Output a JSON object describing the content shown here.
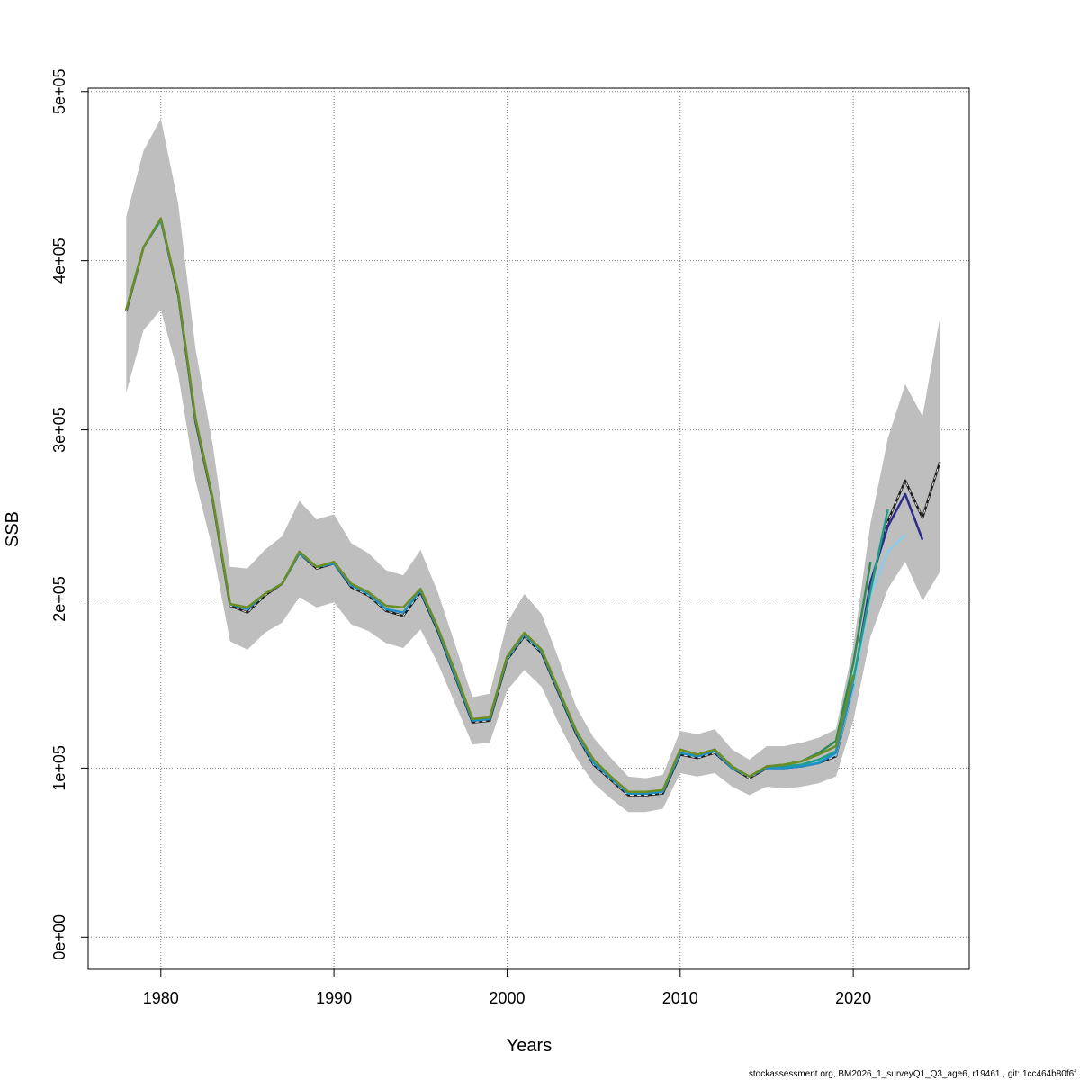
{
  "chart_data": {
    "type": "line",
    "xlabel": "Years",
    "ylabel": "SSB",
    "xlim": [
      1975.8,
      2026.7
    ],
    "ylim": [
      -19000,
      502000
    ],
    "x_ticks": [
      1980,
      1990,
      2000,
      2010,
      2020
    ],
    "x_tick_labels": [
      "1980",
      "1990",
      "2000",
      "2010",
      "2020"
    ],
    "y_ticks": [
      0,
      100000,
      200000,
      300000,
      400000,
      500000
    ],
    "y_tick_labels": [
      "0e+00",
      "1e+05",
      "2e+05",
      "3e+05",
      "4e+05",
      "5e+05"
    ],
    "grid": true,
    "confidence_band": {
      "color": "#bebebe",
      "x": [
        1978,
        1979,
        1980,
        1981,
        1982,
        1983,
        1984,
        1985,
        1986,
        1987,
        1988,
        1989,
        1990,
        1991,
        1992,
        1993,
        1994,
        1995,
        1996,
        1997,
        1998,
        1999,
        2000,
        2001,
        2002,
        2003,
        2004,
        2005,
        2006,
        2007,
        2008,
        2009,
        2010,
        2011,
        2012,
        2013,
        2014,
        2015,
        2016,
        2017,
        2018,
        2019,
        2020,
        2021,
        2022,
        2023,
        2024,
        2025
      ],
      "upper": [
        426000,
        465000,
        484000,
        434000,
        348000,
        291000,
        219000,
        218000,
        229000,
        237000,
        258000,
        247000,
        250000,
        233000,
        227000,
        217000,
        214000,
        229000,
        204000,
        173000,
        142000,
        144000,
        186000,
        203000,
        191000,
        164000,
        136000,
        118000,
        106000,
        95000,
        94000,
        96000,
        122000,
        120000,
        123000,
        111000,
        105000,
        113000,
        113000,
        115000,
        118000,
        123000,
        172000,
        245000,
        295000,
        327000,
        308000,
        366000
      ],
      "lower": [
        322000,
        359000,
        371000,
        333000,
        270000,
        229000,
        175000,
        170000,
        180000,
        186000,
        201000,
        195000,
        198000,
        185000,
        181000,
        174000,
        171000,
        182000,
        162000,
        138000,
        114000,
        115000,
        146000,
        158000,
        148000,
        126000,
        106000,
        91000,
        82000,
        74000,
        74000,
        76000,
        97000,
        95000,
        97000,
        89000,
        84000,
        89000,
        88000,
        89000,
        91000,
        95000,
        128000,
        178000,
        206000,
        222000,
        199000,
        216000
      ]
    },
    "series": [
      {
        "color": "#1c1c1c",
        "dashed_overlay": true,
        "x": [
          1978,
          1979,
          1980,
          1981,
          1982,
          1983,
          1984,
          1985,
          1986,
          1987,
          1988,
          1989,
          1990,
          1991,
          1992,
          1993,
          1994,
          1995,
          1996,
          1997,
          1998,
          1999,
          2000,
          2001,
          2002,
          2003,
          2004,
          2005,
          2006,
          2007,
          2008,
          2009,
          2010,
          2011,
          2012,
          2013,
          2014,
          2015,
          2016,
          2017,
          2018,
          2019,
          2020,
          2021,
          2022,
          2023,
          2024,
          2025
        ],
        "values": [
          370000,
          408000,
          424000,
          380000,
          305000,
          258000,
          196000,
          192000,
          202000,
          209000,
          227000,
          218000,
          221000,
          207000,
          202000,
          193000,
          190000,
          204000,
          181000,
          154000,
          127000,
          128000,
          164000,
          178000,
          168000,
          144000,
          120000,
          102000,
          93000,
          84000,
          84000,
          85000,
          108000,
          106000,
          109000,
          100000,
          94000,
          100000,
          100000,
          101000,
          103000,
          107000,
          148000,
          208000,
          246000,
          270000,
          248000,
          281000
        ]
      },
      {
        "color": "#2e2a8c",
        "x": [
          2015,
          2016,
          2017,
          2018,
          2019,
          2020,
          2021,
          2022,
          2023,
          2024
        ],
        "values": [
          101000,
          100000,
          101000,
          104000,
          108000,
          150000,
          210000,
          243000,
          262000,
          235000
        ]
      },
      {
        "color": "#87ceeb",
        "x": [
          2015,
          2016,
          2017,
          2018,
          2019,
          2020,
          2021,
          2022,
          2023
        ],
        "values": [
          101000,
          101000,
          102000,
          104000,
          108000,
          148000,
          203000,
          228000,
          238000
        ]
      },
      {
        "color": "#1e9e88",
        "x": [
          2015,
          2016,
          2017,
          2018,
          2019,
          2020,
          2021,
          2022
        ],
        "values": [
          101000,
          101000,
          102000,
          105000,
          110000,
          152000,
          205000,
          253000
        ]
      },
      {
        "color": "#2e8b57",
        "x": [
          2015,
          2016,
          2017,
          2018,
          2019,
          2020,
          2021
        ],
        "values": [
          101000,
          102000,
          104000,
          109000,
          116000,
          162000,
          222000
        ]
      },
      {
        "color": "#1e90c8",
        "x": [
          1978,
          1979,
          1980,
          1981,
          1982,
          1983,
          1984,
          1985,
          1986,
          1987,
          1988,
          1989,
          1990,
          1991,
          1992,
          1993,
          1994,
          1995,
          1996,
          1997,
          1998,
          1999,
          2000,
          2001,
          2002,
          2003,
          2004,
          2005,
          2006,
          2007,
          2008,
          2009,
          2010,
          2011,
          2012,
          2013,
          2014,
          2015,
          2016,
          2017,
          2018,
          2019,
          2020
        ],
        "values": [
          371000,
          408000,
          424000,
          381000,
          306000,
          259000,
          197000,
          194000,
          203000,
          209000,
          227000,
          219000,
          221000,
          208000,
          203000,
          194000,
          192000,
          205000,
          182000,
          155000,
          128000,
          129000,
          165000,
          179000,
          169000,
          145000,
          121000,
          103000,
          94000,
          85000,
          85000,
          86000,
          109000,
          107000,
          110000,
          100000,
          95000,
          100000,
          100000,
          101000,
          103000,
          109000,
          150000
        ]
      },
      {
        "color": "#6b8e23",
        "x": [
          1978,
          1979,
          1980,
          1981,
          1982,
          1983,
          1984,
          1985,
          1986,
          1987,
          1988,
          1989,
          1990,
          1991,
          1992,
          1993,
          1994,
          1995,
          1996,
          1997,
          1998,
          1999,
          2000,
          2001,
          2002,
          2003,
          2004,
          2005,
          2006,
          2007,
          2008,
          2009,
          2010,
          2011,
          2012,
          2013,
          2014,
          2015,
          2016,
          2017,
          2018,
          2019,
          2020
        ],
        "values": [
          371000,
          408000,
          425000,
          381000,
          307000,
          259000,
          197000,
          195000,
          203000,
          209000,
          228000,
          219000,
          222000,
          209000,
          204000,
          196000,
          195000,
          206000,
          183000,
          157000,
          129000,
          130000,
          166000,
          180000,
          170000,
          146000,
          122000,
          105000,
          95000,
          86000,
          86000,
          87000,
          111000,
          108000,
          111000,
          101000,
          95000,
          101000,
          102000,
          104000,
          108000,
          113000,
          155000
        ]
      }
    ]
  },
  "footer": "stockassessment.org, BM2026_1_surveyQ1_Q3_age6, r19461 , git: 1cc464b80f6f"
}
